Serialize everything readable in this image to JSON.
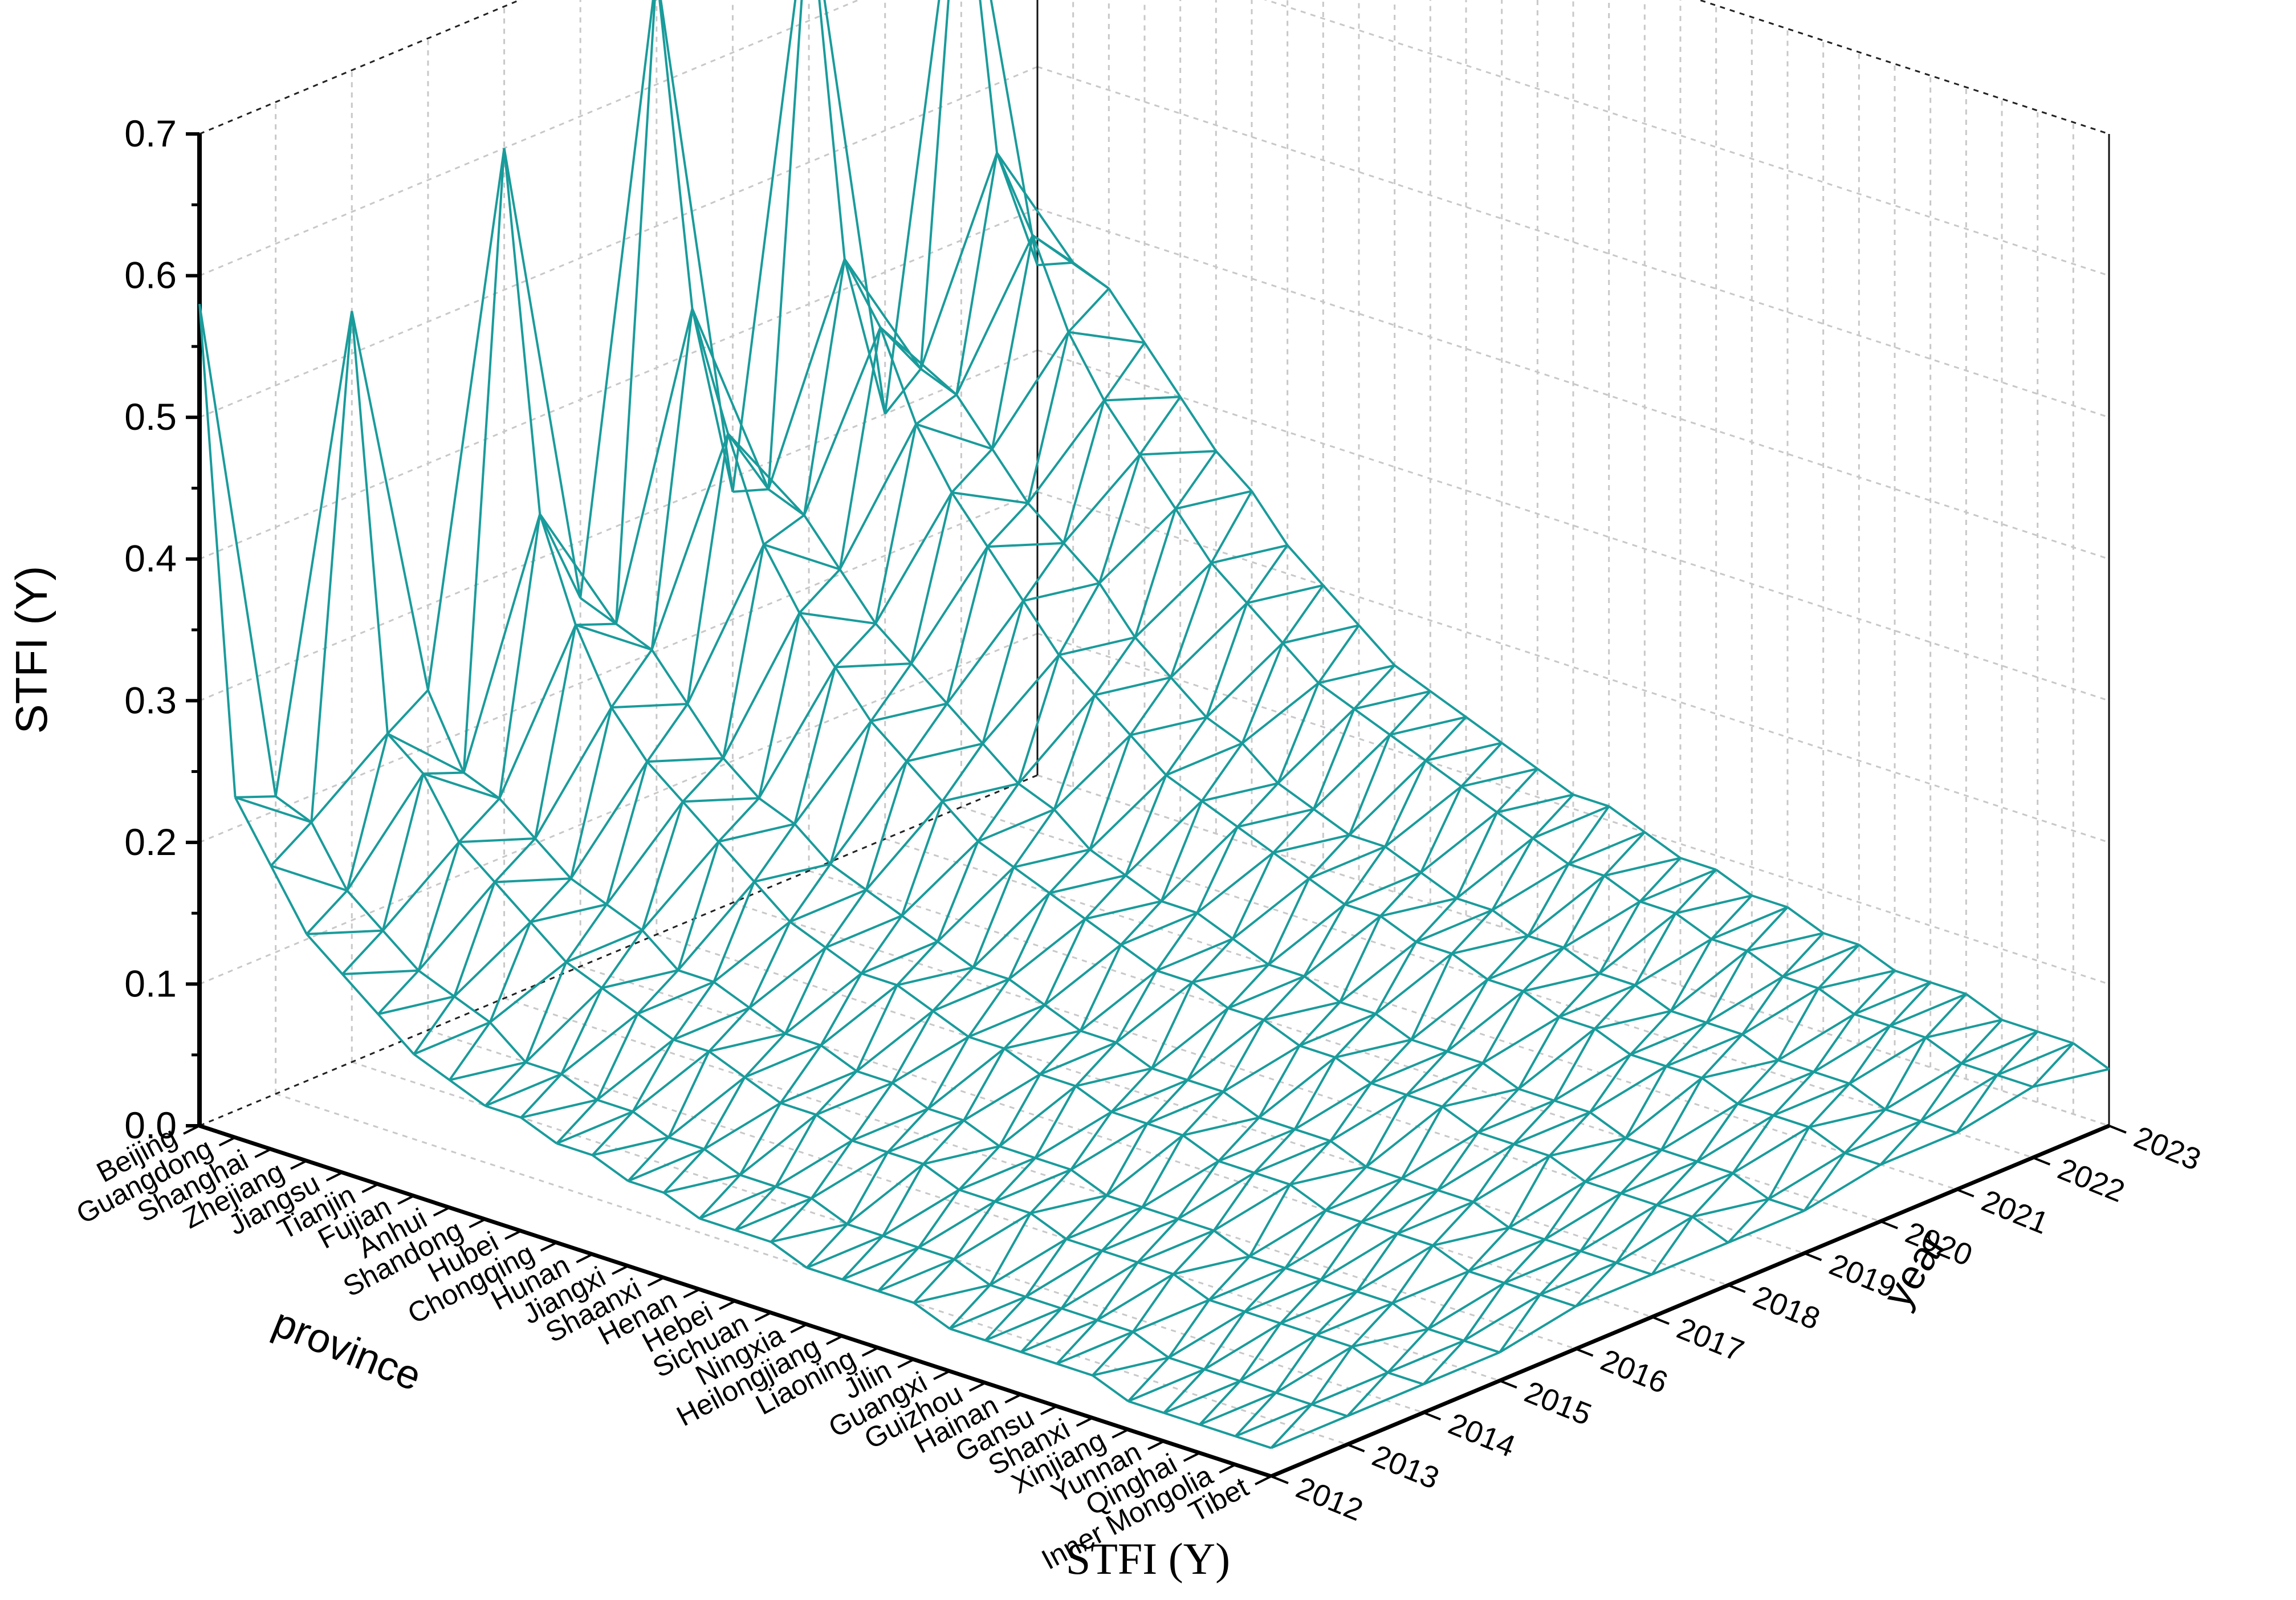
{
  "figure": {
    "caption": "STFI (Y)"
  },
  "chart_data": {
    "type": "surface-3d-wireframe",
    "title": "",
    "zlabel": "STFI (Y)",
    "xlabel": "province",
    "ylabel": "year",
    "zlim": [
      0.0,
      0.7
    ],
    "z_ticks": [
      "0.0",
      "0.1",
      "0.2",
      "0.3",
      "0.4",
      "0.5",
      "0.6",
      "0.7"
    ],
    "grid": true,
    "mesh_color": "#1a9b9b",
    "provinces": [
      "Beijing",
      "Guangdong",
      "Shanghai",
      "Zhejiang",
      "Jiangsu",
      "Tianjin",
      "Fujian",
      "Anhui",
      "Shandong",
      "Hubei",
      "Chongqing",
      "Hunan",
      "Jiangxi",
      "Shaanxi",
      "Henan",
      "Hebei",
      "Sichuan",
      "Ningxia",
      "Heilongjiang",
      "Liaoning",
      "Jilin",
      "Guangxi",
      "Guizhou",
      "Hainan",
      "Gansu",
      "Shanxi",
      "Xinjiang",
      "Yunnan",
      "Qinghai",
      "Inner Mongolia",
      "Tibet"
    ],
    "years": [
      "2012",
      "2013",
      "2014",
      "2015",
      "2016",
      "2017",
      "2018",
      "2019",
      "2020",
      "2021",
      "2022",
      "2023"
    ],
    "z": [
      [
        0.58,
        0.21,
        0.53,
        0.24,
        0.6,
        0.26,
        0.68,
        0.29,
        0.69,
        0.3,
        0.69,
        0.36
      ],
      [
        0.24,
        0.2,
        0.24,
        0.19,
        0.35,
        0.25,
        0.45,
        0.3,
        0.44,
        0.34,
        0.47,
        0.37
      ],
      [
        0.2,
        0.16,
        0.22,
        0.18,
        0.28,
        0.24,
        0.37,
        0.29,
        0.4,
        0.33,
        0.42,
        0.36
      ],
      [
        0.16,
        0.14,
        0.18,
        0.16,
        0.23,
        0.21,
        0.3,
        0.26,
        0.34,
        0.3,
        0.36,
        0.33
      ],
      [
        0.14,
        0.12,
        0.16,
        0.14,
        0.2,
        0.18,
        0.26,
        0.23,
        0.3,
        0.27,
        0.32,
        0.3
      ],
      [
        0.12,
        0.11,
        0.14,
        0.13,
        0.18,
        0.16,
        0.23,
        0.21,
        0.27,
        0.25,
        0.29,
        0.27
      ],
      [
        0.1,
        0.1,
        0.12,
        0.12,
        0.16,
        0.15,
        0.2,
        0.19,
        0.24,
        0.23,
        0.26,
        0.25
      ],
      [
        0.09,
        0.08,
        0.11,
        0.1,
        0.14,
        0.13,
        0.18,
        0.17,
        0.21,
        0.2,
        0.23,
        0.22
      ],
      [
        0.08,
        0.08,
        0.1,
        0.1,
        0.12,
        0.12,
        0.16,
        0.15,
        0.19,
        0.18,
        0.21,
        0.2
      ],
      [
        0.08,
        0.07,
        0.09,
        0.09,
        0.11,
        0.11,
        0.14,
        0.14,
        0.17,
        0.16,
        0.19,
        0.18
      ],
      [
        0.07,
        0.07,
        0.09,
        0.08,
        0.1,
        0.1,
        0.13,
        0.12,
        0.15,
        0.15,
        0.17,
        0.16
      ],
      [
        0.07,
        0.06,
        0.08,
        0.08,
        0.1,
        0.09,
        0.12,
        0.11,
        0.14,
        0.13,
        0.16,
        0.15
      ],
      [
        0.06,
        0.06,
        0.07,
        0.07,
        0.09,
        0.09,
        0.11,
        0.1,
        0.13,
        0.12,
        0.15,
        0.14
      ],
      [
        0.06,
        0.05,
        0.07,
        0.07,
        0.08,
        0.08,
        0.1,
        0.1,
        0.12,
        0.11,
        0.14,
        0.13
      ],
      [
        0.05,
        0.05,
        0.06,
        0.06,
        0.08,
        0.07,
        0.09,
        0.09,
        0.11,
        0.11,
        0.13,
        0.12
      ],
      [
        0.05,
        0.05,
        0.06,
        0.06,
        0.07,
        0.07,
        0.09,
        0.08,
        0.1,
        0.1,
        0.12,
        0.11
      ],
      [
        0.05,
        0.04,
        0.06,
        0.05,
        0.07,
        0.06,
        0.08,
        0.08,
        0.1,
        0.09,
        0.11,
        0.11
      ],
      [
        0.04,
        0.04,
        0.05,
        0.05,
        0.06,
        0.06,
        0.08,
        0.07,
        0.09,
        0.09,
        0.1,
        0.1
      ],
      [
        0.04,
        0.04,
        0.05,
        0.05,
        0.06,
        0.06,
        0.07,
        0.07,
        0.09,
        0.08,
        0.1,
        0.09
      ],
      [
        0.04,
        0.04,
        0.05,
        0.04,
        0.06,
        0.05,
        0.07,
        0.06,
        0.08,
        0.08,
        0.09,
        0.09
      ],
      [
        0.04,
        0.03,
        0.04,
        0.04,
        0.05,
        0.05,
        0.06,
        0.06,
        0.08,
        0.07,
        0.09,
        0.08
      ],
      [
        0.03,
        0.03,
        0.04,
        0.04,
        0.05,
        0.05,
        0.06,
        0.06,
        0.07,
        0.07,
        0.08,
        0.08
      ],
      [
        0.03,
        0.03,
        0.04,
        0.04,
        0.05,
        0.04,
        0.06,
        0.05,
        0.07,
        0.06,
        0.08,
        0.07
      ],
      [
        0.03,
        0.03,
        0.04,
        0.03,
        0.04,
        0.04,
        0.05,
        0.05,
        0.06,
        0.06,
        0.07,
        0.07
      ],
      [
        0.03,
        0.03,
        0.03,
        0.03,
        0.04,
        0.04,
        0.05,
        0.05,
        0.06,
        0.06,
        0.07,
        0.06
      ],
      [
        0.03,
        0.02,
        0.03,
        0.03,
        0.04,
        0.04,
        0.05,
        0.04,
        0.06,
        0.05,
        0.06,
        0.06
      ],
      [
        0.02,
        0.02,
        0.03,
        0.03,
        0.04,
        0.03,
        0.04,
        0.04,
        0.05,
        0.05,
        0.06,
        0.06
      ],
      [
        0.02,
        0.02,
        0.03,
        0.03,
        0.03,
        0.03,
        0.04,
        0.04,
        0.05,
        0.05,
        0.06,
        0.05
      ],
      [
        0.02,
        0.02,
        0.03,
        0.02,
        0.03,
        0.03,
        0.04,
        0.04,
        0.05,
        0.04,
        0.05,
        0.05
      ],
      [
        0.02,
        0.02,
        0.02,
        0.02,
        0.03,
        0.03,
        0.04,
        0.03,
        0.04,
        0.04,
        0.05,
        0.05
      ],
      [
        0.02,
        0.02,
        0.02,
        0.02,
        0.03,
        0.03,
        0.03,
        0.03,
        0.04,
        0.04,
        0.05,
        0.04
      ]
    ]
  }
}
